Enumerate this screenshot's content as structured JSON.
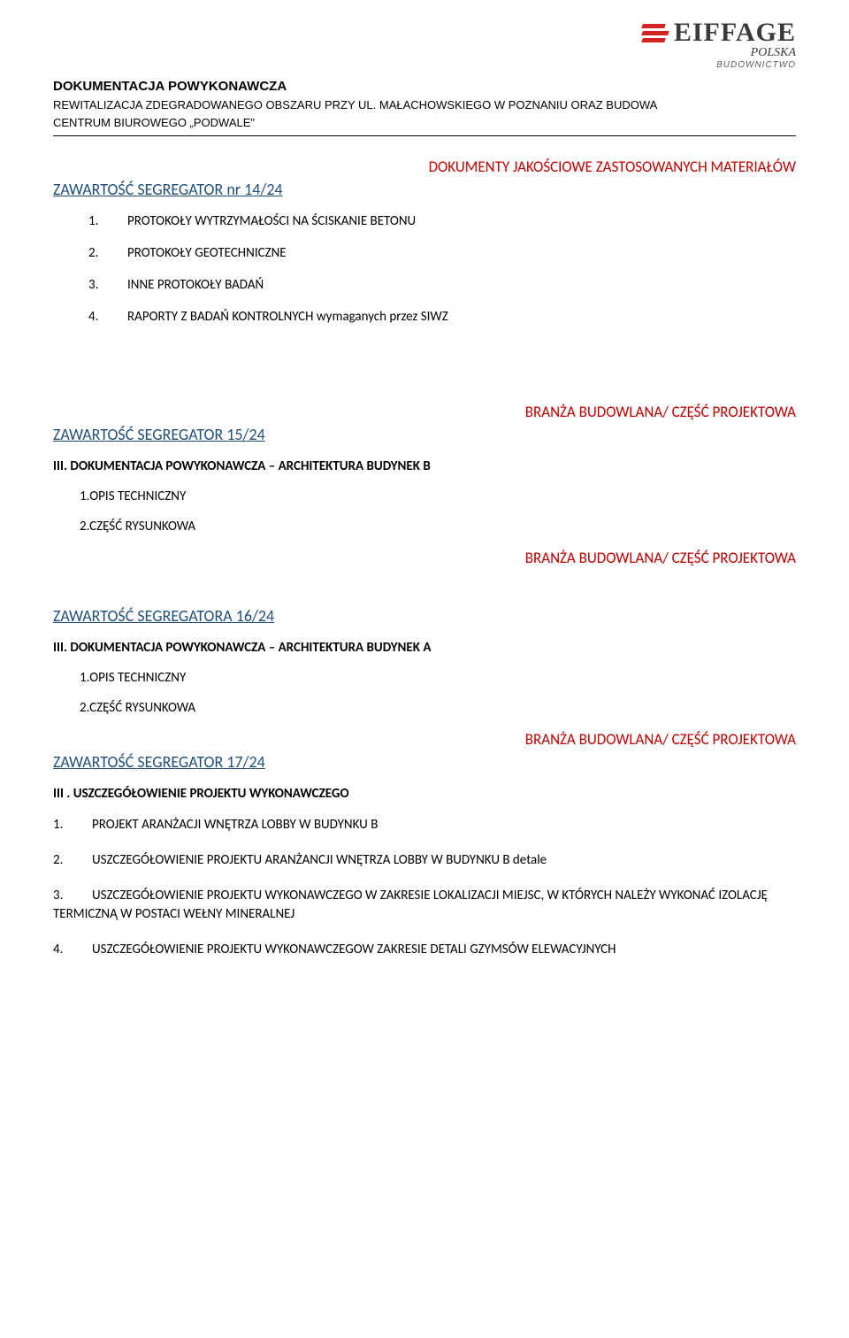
{
  "logo": {
    "name": "EIFFAGE",
    "sub": "POLSKA",
    "subsub": "BUDOWNICTWO",
    "bar_color": "#d32323",
    "text_color": "#3b3b3b"
  },
  "header": {
    "title": "DOKUMENTACJA POWYKONAWCZA",
    "line1": "REWITALIZACJA ZDEGRADOWANEGO OBSZARU PRZY UL. MAŁACHOWSKIEGO W POZNANIU ORAZ BUDOWA",
    "line2": "CENTRUM BIUROWEGO „PODWALE\""
  },
  "red1": "DOKUMENTY JAKOŚCIOWE ZASTOSOWANYCH MATERIAŁÓW",
  "seg14": {
    "heading": "ZAWARTOŚĆ SEGREGATOR nr 14/24",
    "items": [
      "PROTOKOŁY WYTRZYMAŁOŚCI NA ŚCISKANIE BETONU",
      "PROTOKOŁY GEOTECHNICZNE",
      "INNE PROTOKOŁY BADAŃ",
      "RAPORTY Z BADAŃ KONTROLNYCH  wymaganych przez SIWZ"
    ]
  },
  "red2": "BRANŻA BUDOWLANA/ CZĘŚĆ PROJEKTOWA",
  "seg15": {
    "heading": "ZAWARTOŚĆ SEGREGATOR 15/24",
    "sub": "III. DOKUMENTACJA POWYKONAWCZA – ARCHITEKTURA BUDYNEK B",
    "items": [
      "1.OPIS TECHNICZNY",
      "2.CZĘŚĆ RYSUNKOWA"
    ]
  },
  "red3": "BRANŻA BUDOWLANA/ CZĘŚĆ PROJEKTOWA",
  "seg16": {
    "heading": "ZAWARTOŚĆ SEGREGATORA 16/24",
    "sub": "III. DOKUMENTACJA POWYKONAWCZA – ARCHITEKTURA BUDYNEK A",
    "items": [
      "1.OPIS TECHNICZNY",
      "2.CZĘŚĆ RYSUNKOWA"
    ]
  },
  "red4": "BRANŻA BUDOWLANA/ CZĘŚĆ PROJEKTOWA",
  "seg17": {
    "heading": "ZAWARTOŚĆ SEGREGATOR 17/24",
    "sub": "III . USZCZEGÓŁOWIENIE PROJEKTU WYKONAWCZEGO",
    "items": [
      {
        "n": "1.",
        "t": "PROJEKT ARANŻACJI WNĘTRZA LOBBY W BUDYNKU B"
      },
      {
        "n": "2.",
        "t": "USZCZEGÓŁOWIENIE PROJEKTU ARANŻANCJI WNĘTRZA LOBBY W BUDYNKU B detale"
      },
      {
        "n": "3.",
        "t": "USZCZEGÓŁOWIENIE PROJEKTU WYKONAWCZEGO W ZAKRESIE  LOKALIZACJI MIEJSC, W KTÓRYCH NALEŻY WYKONAĆ IZOLACJĘ TERMICZNĄ W POSTACI WEŁNY MINERALNEJ"
      },
      {
        "n": "4.",
        "t": "USZCZEGÓŁOWIENIE PROJEKTU WYKONAWCZEGOW ZAKRESIE DETALI GZYMSÓW ELEWACYJNYCH"
      }
    ]
  }
}
